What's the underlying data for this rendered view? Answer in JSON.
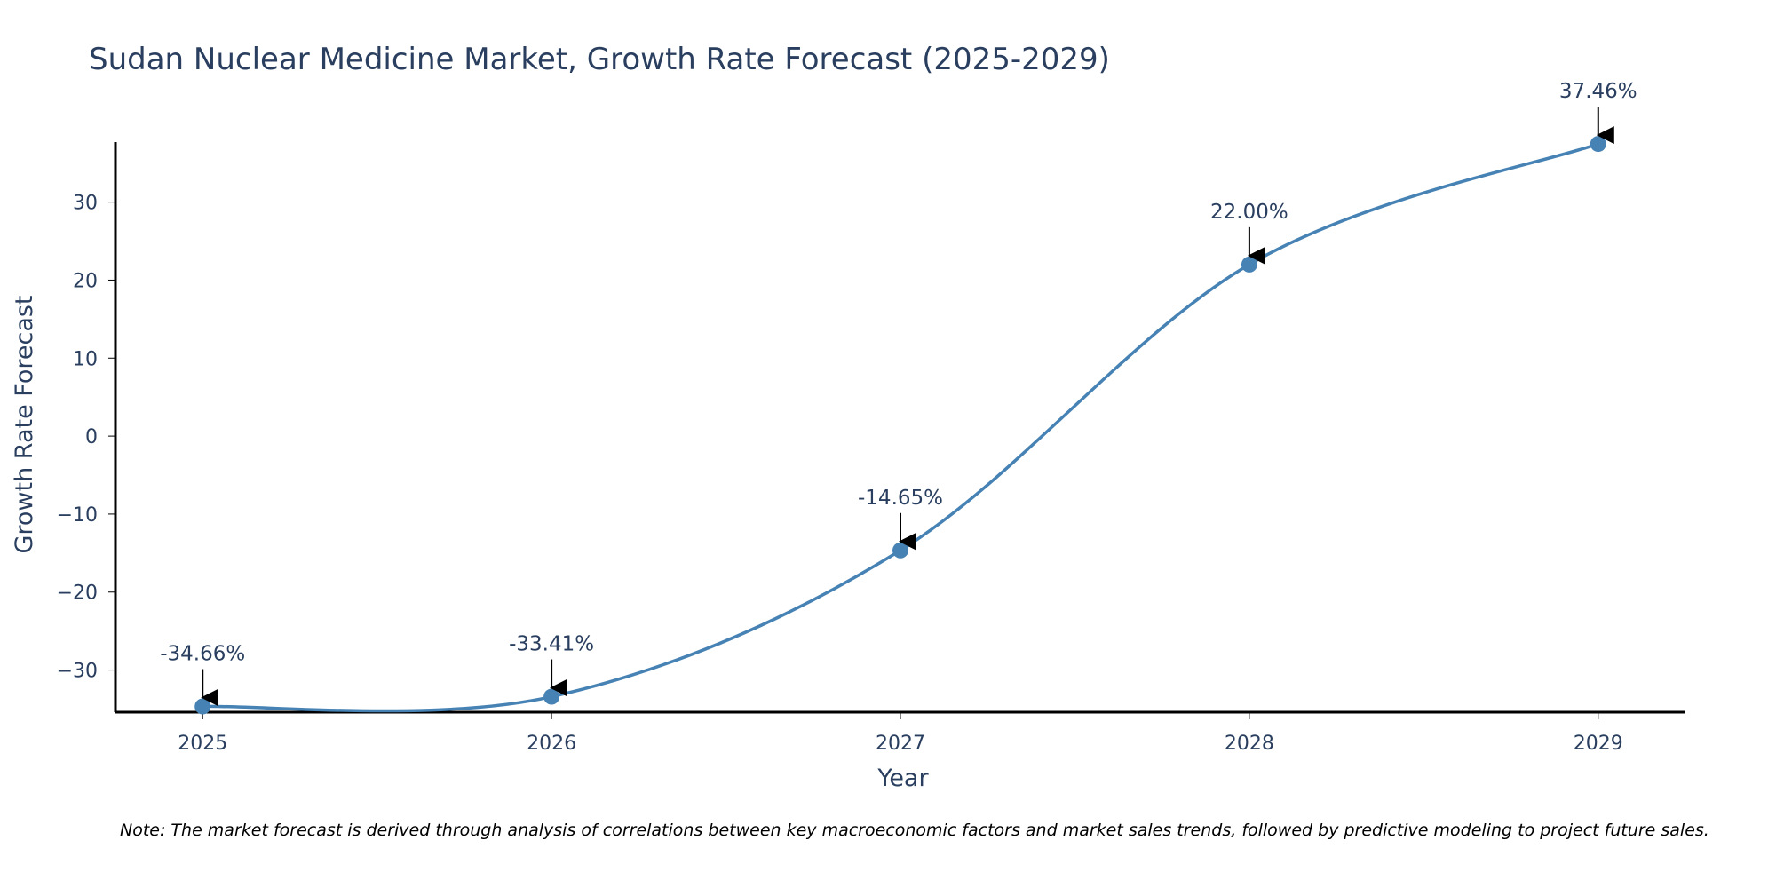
{
  "chart_data": {
    "type": "line",
    "title": "Sudan Nuclear Medicine Market, Growth Rate Forecast (2025-2029)",
    "xlabel": "Year",
    "ylabel": "Growth Rate Forecast",
    "categories": [
      "2025",
      "2026",
      "2027",
      "2028",
      "2029"
    ],
    "series": [
      {
        "name": "Growth Rate Forecast",
        "values": [
          -34.66,
          -33.41,
          -14.65,
          22.0,
          37.46
        ],
        "labels": [
          "-34.66%",
          "-33.41%",
          "-14.65%",
          "22.00%",
          "37.46%"
        ],
        "color": "#4682b4",
        "line_shape": "spline"
      }
    ],
    "y_ticks": [
      30,
      20,
      10,
      0,
      -10,
      -20,
      -30
    ],
    "y_tick_labels": [
      "30",
      "20",
      "10",
      "0",
      "−10",
      "−20",
      "−30"
    ],
    "ylim": [
      -35.4,
      37.7
    ],
    "xlim": [
      -0.25,
      4.25
    ],
    "grid": false,
    "annotation_arrow_color": "#000000"
  },
  "note": "Note: The market forecast is derived through analysis of correlations between key macroeconomic factors and market sales trends, followed by predictive modeling to project future sales."
}
